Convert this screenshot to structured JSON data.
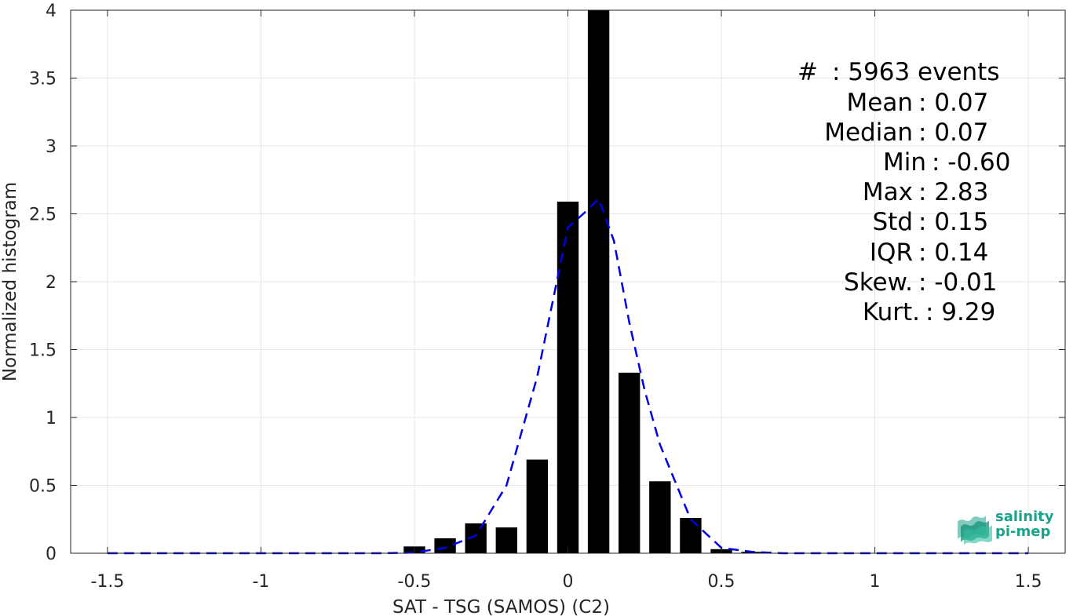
{
  "chart_data": {
    "type": "bar",
    "xlabel": "SAT - TSG (SAMOS) (C2)",
    "ylabel": "Normalized histogram",
    "xlim": [
      -1.62,
      1.62
    ],
    "ylim": [
      0,
      4
    ],
    "xticks": [
      -1.5,
      -1,
      -0.5,
      0,
      0.5,
      1,
      1.5
    ],
    "xtick_labels": [
      "-1.5",
      "-1",
      "-0.5",
      "0",
      "0.5",
      "1",
      "1.5"
    ],
    "yticks": [
      0,
      0.5,
      1,
      1.5,
      2,
      2.5,
      3,
      3.5,
      4
    ],
    "ytick_labels": [
      "0",
      "0.5",
      "1",
      "1.5",
      "2",
      "2.5",
      "3",
      "3.5",
      "4"
    ],
    "grid": true,
    "bar_color": "#000000",
    "bars": {
      "centers": [
        -1.5,
        -1.4,
        -1.3,
        -1.2,
        -1.1,
        -1.0,
        -0.9,
        -0.8,
        -0.7,
        -0.6,
        -0.5,
        -0.4,
        -0.3,
        -0.2,
        -0.1,
        0.0,
        0.1,
        0.2,
        0.3,
        0.4,
        0.5,
        0.6,
        0.7,
        0.8,
        0.9,
        1.0,
        1.1,
        1.2,
        1.3,
        1.4,
        1.5
      ],
      "values": [
        0,
        0,
        0,
        0,
        0,
        0,
        0,
        0,
        0,
        0.003,
        0.05,
        0.11,
        0.22,
        0.19,
        0.69,
        2.59,
        4.0,
        1.33,
        0.53,
        0.26,
        0.03,
        0.01,
        0,
        0,
        0,
        0,
        0,
        0,
        0,
        0,
        0.003
      ],
      "width": 0.07
    },
    "fit_line": {
      "color": "#0000e6",
      "style": "dashed",
      "x": [
        -1.5,
        -1.0,
        -0.6,
        -0.5,
        -0.4,
        -0.3,
        -0.2,
        -0.1,
        -0.03,
        0.0,
        0.05,
        0.1,
        0.15,
        0.2,
        0.25,
        0.3,
        0.4,
        0.5,
        0.6,
        0.7,
        1.0,
        1.5
      ],
      "y": [
        0,
        0,
        0,
        0.005,
        0.04,
        0.13,
        0.5,
        1.3,
        2.07,
        2.4,
        2.5,
        2.61,
        2.3,
        1.7,
        1.2,
        0.8,
        0.25,
        0.04,
        0.01,
        0,
        0,
        0
      ]
    }
  },
  "stats": [
    {
      "name": "#",
      "value": ": 5963 events"
    },
    {
      "name": "Mean",
      "value": ": 0.07"
    },
    {
      "name": "Median",
      "value": ": 0.07"
    },
    {
      "name": "Min",
      "value": ": -0.60"
    },
    {
      "name": "Max",
      "value": ": 2.83"
    },
    {
      "name": "Std",
      "value": ": 0.15"
    },
    {
      "name": "IQR",
      "value": ": 0.14"
    },
    {
      "name": "Skew.",
      "value": ": -0.01"
    },
    {
      "name": "Kurt.",
      "value": ": 9.29"
    }
  ],
  "logo": {
    "line1": "salinity",
    "line2": "pi-mep",
    "color": "#1aa38a"
  }
}
